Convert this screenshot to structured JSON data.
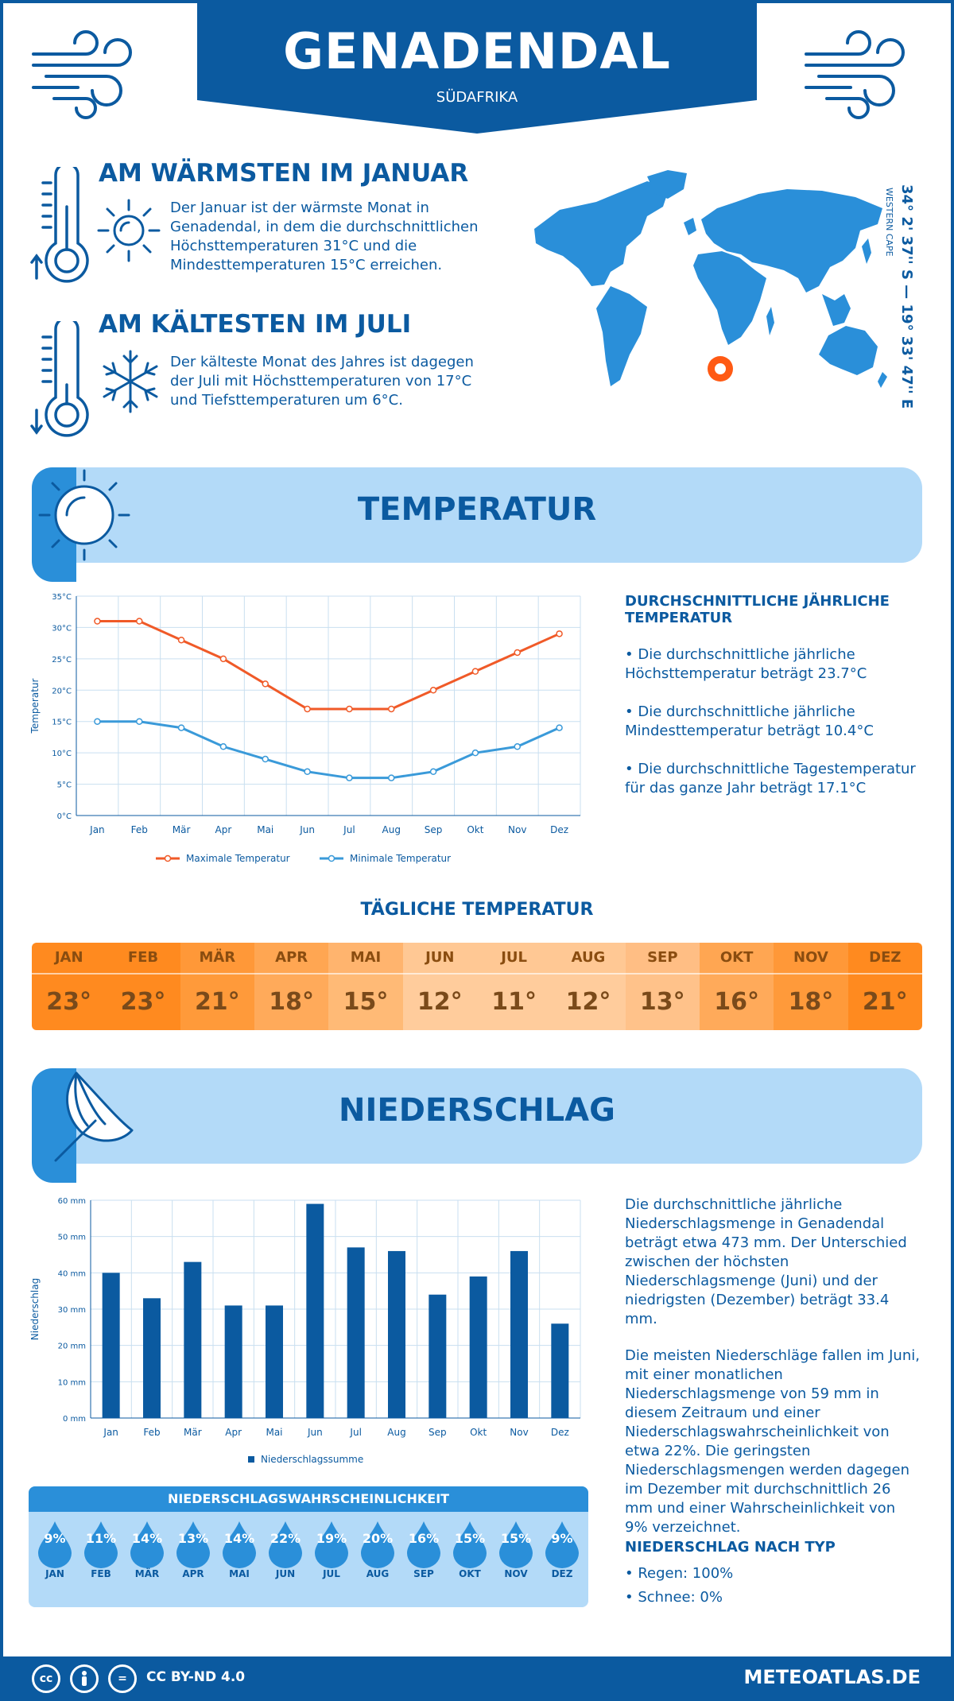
{
  "header": {
    "city": "GENADENDAL",
    "country": "SÜDAFRIKA"
  },
  "warmest": {
    "title": "AM WÄRMSTEN IM JANUAR",
    "text": "Der Januar ist der wärmste Monat in Genadendal, in dem die durchschnittlichen Höchsttemperaturen 31°C und die Mindesttemperaturen 15°C erreichen."
  },
  "coldest": {
    "title": "AM KÄLTESTEN IM JULI",
    "text": "Der kälteste Monat des Jahres ist dagegen der Juli mit Höchsttemperaturen von 17°C und Tiefsttemperaturen um 6°C."
  },
  "location": {
    "coords": "34° 2' 37'' S — 19° 33' 47'' E",
    "region": "WESTERN CAPE"
  },
  "temperature_section": {
    "title": "TEMPERATUR",
    "summary_title": "DURCHSCHNITTLICHE JÄHRLICHE TEMPERATUR",
    "bullets": [
      "• Die durchschnittliche jährliche Höchsttemperatur beträgt 23.7°C",
      "• Die durchschnittliche jährliche Mindesttemperatur beträgt 10.4°C",
      "• Die durchschnittliche Tagestemperatur für das ganze Jahr beträgt 17.1°C"
    ]
  },
  "daily": {
    "title": "TÄGLICHE TEMPERATUR",
    "months": [
      "JAN",
      "FEB",
      "MÄR",
      "APR",
      "MAI",
      "JUN",
      "JUL",
      "AUG",
      "SEP",
      "OKT",
      "NOV",
      "DEZ"
    ],
    "values": [
      "23°",
      "23°",
      "21°",
      "18°",
      "15°",
      "12°",
      "11°",
      "12°",
      "13°",
      "16°",
      "18°",
      "21°"
    ],
    "head_colors": [
      "#ff8a1f",
      "#ff8a1f",
      "#ff9838",
      "#ffa652",
      "#ffb46e",
      "#ffc894",
      "#ffc894",
      "#ffc894",
      "#ffbe84",
      "#ffa652",
      "#ff9838",
      "#ff8a1f"
    ],
    "cell_colors": [
      "#ff8a1f",
      "#ff8a1f",
      "#ff9a3a",
      "#ffaa5a",
      "#ffba76",
      "#ffcc9c",
      "#ffcc9c",
      "#ffcc9c",
      "#ffc28a",
      "#ffaa5a",
      "#ff9a3a",
      "#ff8a1f"
    ]
  },
  "precip_section": {
    "title": "NIEDERSCHLAG",
    "text1": "Die durchschnittliche jährliche Niederschlagsmenge in Genadendal beträgt etwa 473 mm. Der Unterschied zwischen der höchsten Niederschlagsmenge (Juni) und der niedrigsten (Dezember) beträgt 33.4 mm.",
    "text2": "Die meisten Niederschläge fallen im Juni, mit einer monatlichen Niederschlagsmenge von 59 mm in diesem Zeitraum und einer Niederschlagswahrscheinlichkeit von etwa 22%. Die geringsten Niederschlagsmengen werden dagegen im Dezember mit durchschnittlich 26 mm und einer Wahrscheinlichkeit von 9% verzeichnet.",
    "type_title": "NIEDERSCHLAG NACH TYP",
    "types": [
      "• Regen: 100%",
      "• Schnee: 0%"
    ]
  },
  "probability": {
    "title": "NIEDERSCHLAGSWAHRSCHEINLICHKEIT",
    "months": [
      "JAN",
      "FEB",
      "MÄR",
      "APR",
      "MAI",
      "JUN",
      "JUL",
      "AUG",
      "SEP",
      "OKT",
      "NOV",
      "DEZ"
    ],
    "values": [
      "9%",
      "11%",
      "14%",
      "13%",
      "14%",
      "22%",
      "19%",
      "20%",
      "16%",
      "15%",
      "15%",
      "9%"
    ]
  },
  "footer": {
    "license": "CC BY-ND 4.0",
    "site": "METEOATLAS.DE"
  },
  "chart_data": [
    {
      "type": "line",
      "categories": [
        "Jan",
        "Feb",
        "Mär",
        "Apr",
        "Mai",
        "Jun",
        "Jul",
        "Aug",
        "Sep",
        "Okt",
        "Nov",
        "Dez"
      ],
      "ylabel": "Temperatur",
      "yticks": [
        "0°C",
        "5°C",
        "10°C",
        "15°C",
        "20°C",
        "25°C",
        "30°C",
        "35°C"
      ],
      "ylim": [
        0,
        35
      ],
      "grid": true,
      "legend": "bottom",
      "series": [
        {
          "name": "Maximale Temperatur",
          "color": "#f05a28",
          "values": [
            31,
            31,
            28,
            25,
            21,
            17,
            17,
            17,
            20,
            23,
            26,
            29
          ]
        },
        {
          "name": "Minimale Temperatur",
          "color": "#3a9ad9",
          "values": [
            15,
            15,
            14,
            11,
            9,
            7,
            6,
            6,
            7,
            10,
            11,
            14
          ]
        }
      ]
    },
    {
      "type": "bar",
      "categories": [
        "Jan",
        "Feb",
        "Mär",
        "Apr",
        "Mai",
        "Jun",
        "Jul",
        "Aug",
        "Sep",
        "Okt",
        "Nov",
        "Dez"
      ],
      "ylabel": "Niederschlag",
      "yticks": [
        "0 mm",
        "10 mm",
        "20 mm",
        "30 mm",
        "40 mm",
        "50 mm",
        "60 mm"
      ],
      "ylim": [
        0,
        60
      ],
      "grid": true,
      "legend": "bottom",
      "series": [
        {
          "name": "Niederschlagssumme",
          "color": "#0b5aa0",
          "values": [
            40,
            33,
            43,
            31,
            31,
            59,
            47,
            46,
            34,
            39,
            46,
            26
          ]
        }
      ]
    }
  ]
}
